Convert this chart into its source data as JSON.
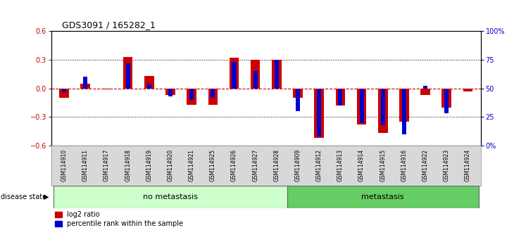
{
  "title": "GDS3091 / 165282_1",
  "samples": [
    "GSM114910",
    "GSM114911",
    "GSM114917",
    "GSM114918",
    "GSM114919",
    "GSM114920",
    "GSM114921",
    "GSM114925",
    "GSM114926",
    "GSM114927",
    "GSM114928",
    "GSM114909",
    "GSM114912",
    "GSM114913",
    "GSM114914",
    "GSM114915",
    "GSM114916",
    "GSM114922",
    "GSM114923",
    "GSM114924"
  ],
  "log2_ratio": [
    -0.1,
    0.05,
    -0.01,
    0.33,
    0.13,
    -0.07,
    -0.17,
    -0.17,
    0.32,
    0.3,
    0.3,
    -0.1,
    -0.52,
    -0.18,
    -0.38,
    -0.47,
    -0.35,
    -0.07,
    -0.2,
    -0.03
  ],
  "percentile_rank": [
    47,
    60,
    50,
    72,
    54,
    43,
    40,
    42,
    73,
    65,
    75,
    30,
    8,
    35,
    20,
    18,
    10,
    52,
    28,
    49
  ],
  "no_metastasis_count": 11,
  "metastasis_count": 9,
  "left_ylim": [
    -0.6,
    0.6
  ],
  "right_ylim": [
    0,
    100
  ],
  "left_yticks": [
    -0.6,
    -0.3,
    0.0,
    0.3,
    0.6
  ],
  "right_yticks": [
    0,
    25,
    50,
    75,
    100
  ],
  "right_yticklabels": [
    "0%",
    "25",
    "50",
    "75",
    "100%"
  ],
  "bar_color_red": "#cc0000",
  "bar_color_blue": "#0000cc",
  "no_metastasis_color": "#ccffcc",
  "metastasis_color": "#66cc66",
  "bg_color": "#ffffff",
  "tick_label_color_red": "#cc0000",
  "tick_label_color_blue": "#0000cc",
  "zero_line_color": "#cc0000",
  "grid_color": "#000000",
  "bar_width": 0.45,
  "blue_bar_width": 0.2
}
